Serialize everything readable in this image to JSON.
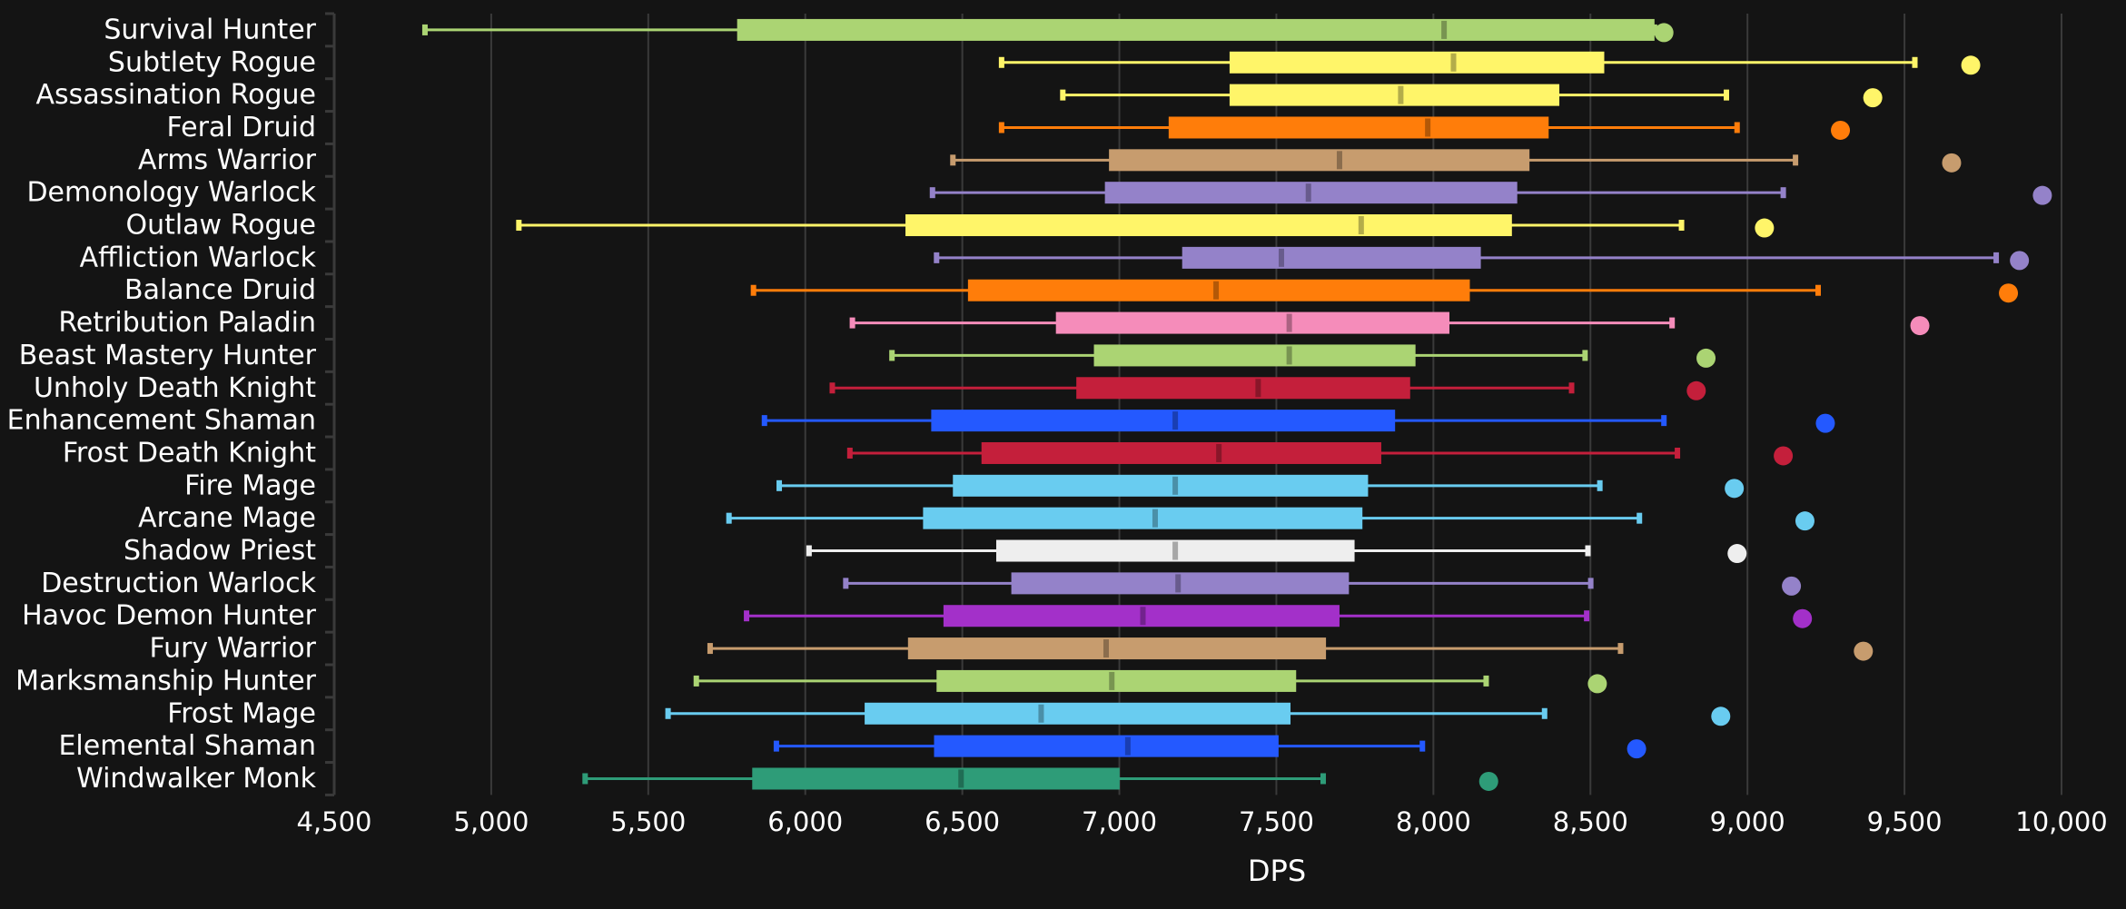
{
  "chart_data": {
    "type": "boxplot",
    "title": "",
    "xlabel": "DPS",
    "ylabel": "",
    "xlim": [
      4500,
      10000
    ],
    "x_ticks": [
      4500,
      5000,
      5500,
      6000,
      6500,
      7000,
      7500,
      8000,
      8500,
      9000,
      9500,
      10000
    ],
    "x_tick_labels": [
      "4,500",
      "5,000",
      "5,500",
      "6,000",
      "6,500",
      "7,000",
      "7,500",
      "8,000",
      "8,500",
      "9,000",
      "9,500",
      "10,000"
    ],
    "grid": "vertical",
    "legend": "none",
    "series": [
      {
        "name": "Survival Hunter",
        "color": "#abd473",
        "min": 4789,
        "q1": 5783,
        "median": 8034,
        "q3": 8704,
        "max": 8704,
        "outlier": 8734
      },
      {
        "name": "Subtlety Rogue",
        "color": "#fff569",
        "min": 6625,
        "q1": 7351,
        "median": 8064,
        "q3": 8544,
        "max": 9533,
        "outlier": 9711
      },
      {
        "name": "Assassination Rogue",
        "color": "#fff569",
        "min": 6820,
        "q1": 7351,
        "median": 7896,
        "q3": 8401,
        "max": 8933,
        "outlier": 9399
      },
      {
        "name": "Feral Druid",
        "color": "#ff7d0a",
        "min": 6625,
        "q1": 7157,
        "median": 7982,
        "q3": 8367,
        "max": 8967,
        "outlier": 9296
      },
      {
        "name": "Arms Warrior",
        "color": "#c79c6e",
        "min": 6470,
        "q1": 6967,
        "median": 7701,
        "q3": 8306,
        "max": 9153,
        "outlier": 9650
      },
      {
        "name": "Demonology Warlock",
        "color": "#9482c9",
        "min": 6405,
        "q1": 6954,
        "median": 7602,
        "q3": 8267,
        "max": 9114,
        "outlier": 9939
      },
      {
        "name": "Outlaw Rogue",
        "color": "#fff569",
        "min": 5088,
        "q1": 6319,
        "median": 7770,
        "q3": 8250,
        "max": 8790,
        "outlier": 9054
      },
      {
        "name": "Affliction Warlock",
        "color": "#9482c9",
        "min": 6418,
        "q1": 7200,
        "median": 7516,
        "q3": 8151,
        "max": 9792,
        "outlier": 9866
      },
      {
        "name": "Balance Druid",
        "color": "#ff7d0a",
        "min": 5835,
        "q1": 6518,
        "median": 7308,
        "q3": 8116,
        "max": 9225,
        "outlier": 9831
      },
      {
        "name": "Retribution Paladin",
        "color": "#f58cba",
        "min": 6150,
        "q1": 6798,
        "median": 7541,
        "q3": 8051,
        "max": 8760,
        "outlier": 9549
      },
      {
        "name": "Beast Mastery Hunter",
        "color": "#abd473",
        "min": 6276,
        "q1": 6919,
        "median": 7541,
        "q3": 7943,
        "max": 8483,
        "outlier": 8868
      },
      {
        "name": "Unholy Death Knight",
        "color": "#c41f3b",
        "min": 6086,
        "q1": 6863,
        "median": 7442,
        "q3": 7926,
        "max": 8440,
        "outlier": 8837
      },
      {
        "name": "Enhancement Shaman",
        "color": "#2459ff",
        "min": 5870,
        "q1": 6401,
        "median": 7178,
        "q3": 7878,
        "max": 8734,
        "outlier": 9248
      },
      {
        "name": "Frost Death Knight",
        "color": "#c41f3b",
        "min": 6142,
        "q1": 6561,
        "median": 7317,
        "q3": 7834,
        "max": 8777,
        "outlier": 9114
      },
      {
        "name": "Fire Mage",
        "color": "#69ccf0",
        "min": 5917,
        "q1": 6470,
        "median": 7178,
        "q3": 7792,
        "max": 8530,
        "outlier": 8958
      },
      {
        "name": "Arcane Mage",
        "color": "#69ccf0",
        "min": 5757,
        "q1": 6375,
        "median": 7114,
        "q3": 7774,
        "max": 8656,
        "outlier": 9183
      },
      {
        "name": "Shadow Priest",
        "color": "#eeeeee",
        "min": 6012,
        "q1": 6608,
        "median": 7178,
        "q3": 7749,
        "max": 8492,
        "outlier": 8967
      },
      {
        "name": "Destruction Warlock",
        "color": "#9482c9",
        "min": 6129,
        "q1": 6656,
        "median": 7187,
        "q3": 7731,
        "max": 8501,
        "outlier": 9140
      },
      {
        "name": "Havoc Demon Hunter",
        "color": "#a330c9",
        "min": 5813,
        "q1": 6440,
        "median": 7075,
        "q3": 7701,
        "max": 8488,
        "outlier": 9175
      },
      {
        "name": "Fury Warrior",
        "color": "#c79c6e",
        "min": 5697,
        "q1": 6327,
        "median": 6958,
        "q3": 7658,
        "max": 8596,
        "outlier": 9369
      },
      {
        "name": "Marksmanship Hunter",
        "color": "#abd473",
        "min": 5653,
        "q1": 6418,
        "median": 6976,
        "q3": 7563,
        "max": 8168,
        "outlier": 8522
      },
      {
        "name": "Frost Mage",
        "color": "#69ccf0",
        "min": 5563,
        "q1": 6189,
        "median": 6751,
        "q3": 7545,
        "max": 8354,
        "outlier": 8915
      },
      {
        "name": "Elemental Shaman",
        "color": "#2459ff",
        "min": 5908,
        "q1": 6410,
        "median": 7027,
        "q3": 7507,
        "max": 7965,
        "outlier": 8647
      },
      {
        "name": "Windwalker Monk",
        "color": "#2e9c78",
        "min": 5299,
        "q1": 5831,
        "median": 6496,
        "q3": 7001,
        "max": 7649,
        "outlier": 8176
      }
    ]
  }
}
